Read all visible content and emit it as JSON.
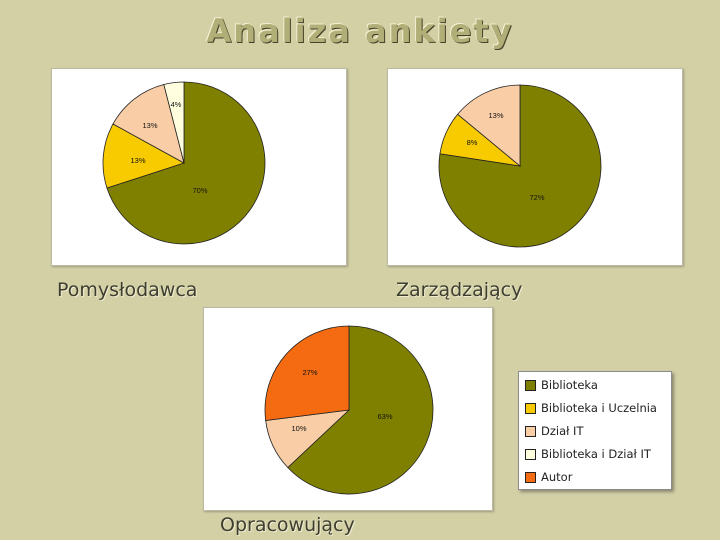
{
  "title": "Analiza ankiety",
  "colors": {
    "Biblioteka": "#808000",
    "Biblioteka i Uczelnia": "#f7cb00",
    "Dział IT": "#f9cda6",
    "Biblioteka i Dział IT": "#ffffe0",
    "Autor": "#f46b12"
  },
  "legend": {
    "placement": "right",
    "items": [
      "Biblioteka",
      "Biblioteka i Uczelnia",
      "Dział IT",
      "Biblioteka i Dział IT",
      "Autor"
    ]
  },
  "chart_data": [
    {
      "type": "pie",
      "title": "Pomysłodawca",
      "labels": [
        "Biblioteka",
        "Biblioteka i Uczelnia",
        "Dział IT",
        "Biblioteka i Dział IT"
      ],
      "values": [
        70,
        13,
        13,
        4
      ],
      "data_labels": [
        "70%",
        "13%",
        "13%",
        "4%"
      ]
    },
    {
      "type": "pie",
      "title": "Zarządzający",
      "labels": [
        "Biblioteka",
        "Biblioteka i Uczelnia",
        "Dział IT"
      ],
      "values": [
        72,
        8,
        13
      ],
      "data_labels": [
        "72%",
        "8%",
        "13%"
      ]
    },
    {
      "type": "pie",
      "title": "Opracowujący",
      "labels": [
        "Biblioteka",
        "Dział IT",
        "Autor"
      ],
      "values": [
        63,
        10,
        27
      ],
      "data_labels": [
        "63%",
        "10%",
        "27%"
      ]
    }
  ]
}
